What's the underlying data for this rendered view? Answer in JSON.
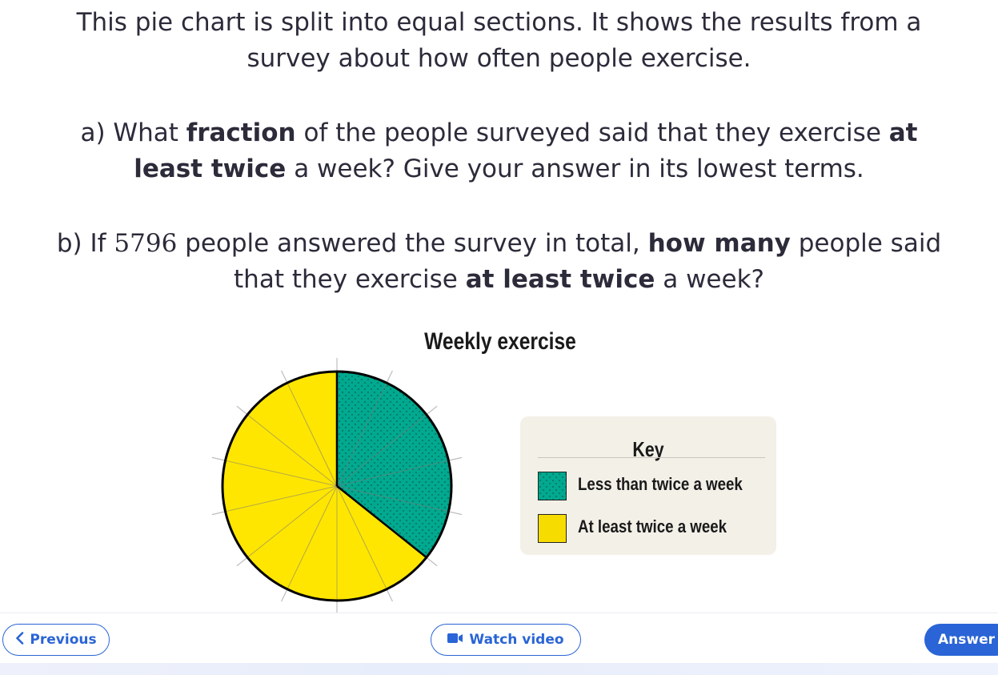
{
  "question": {
    "intro_line1": "This pie chart is split into equal sections. It shows the results from a",
    "intro_line2": "survey about how often people exercise.",
    "a_prefix": "a) What ",
    "a_bold1": "fraction",
    "a_mid": " of the people surveyed said that they exercise ",
    "a_bold2_line1": "at",
    "a_bold2_line2": "least twice",
    "a_suffix": " a week? Give your answer in its lowest terms.",
    "b_prefix": "b) If ",
    "b_number": "5796",
    "b_mid": " people answered the survey in total, ",
    "b_bold1": "how many",
    "b_mid2": " people said",
    "b_line2_prefix": "that they exercise ",
    "b_bold2": "at least twice",
    "b_suffix": " a week?"
  },
  "chart_data": {
    "type": "pie",
    "title": "Weekly exercise",
    "total_sections": 14,
    "series": [
      {
        "name": "Less than twice a week",
        "sections": 5,
        "color": "#00a98f"
      },
      {
        "name": "At least twice a week",
        "sections": 9,
        "color": "#ffe600"
      }
    ]
  },
  "key": {
    "title": "Key",
    "items": [
      {
        "label": "Less than twice a week",
        "color": "#00a98f"
      },
      {
        "label": "At least twice a week",
        "color": "#ffe600"
      }
    ]
  },
  "nav": {
    "previous_label": "Previous",
    "previous_icon": "chevron-left-icon",
    "video_label": "Watch video",
    "video_icon": "video-camera-icon",
    "answer_label": "Answer"
  }
}
